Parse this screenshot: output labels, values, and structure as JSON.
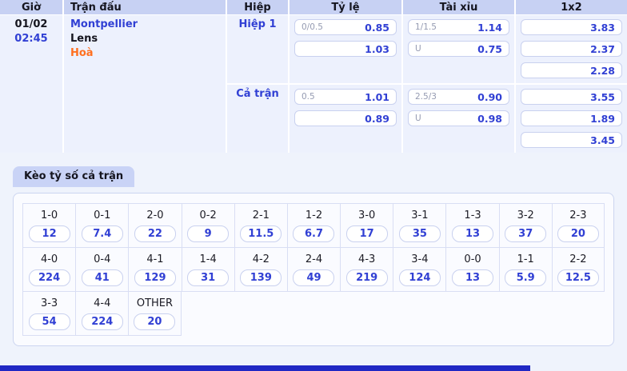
{
  "table": {
    "headers": {
      "time": "Giờ",
      "match": "Trận đấu",
      "period": "Hiệp",
      "handicap": "Tỷ lệ",
      "over_under": "Tài xỉu",
      "one_x_two": "1x2"
    },
    "match": {
      "date": "01/02",
      "time": "02:45",
      "home_team": "Montpellier",
      "away_team": "Lens",
      "draw_label": "Hoà",
      "periods": [
        {
          "label": "Hiệp 1",
          "handicap": [
            {
              "line": "0/0.5",
              "odds": "0.85"
            },
            {
              "line": "",
              "odds": "1.03"
            }
          ],
          "over_under": [
            {
              "line": "1/1.5",
              "odds": "1.14"
            },
            {
              "line": "U",
              "odds": "0.75"
            }
          ],
          "one_x_two": [
            "3.83",
            "2.37",
            "2.28"
          ]
        },
        {
          "label": "Cả trận",
          "handicap": [
            {
              "line": "0.5",
              "odds": "1.01"
            },
            {
              "line": "",
              "odds": "0.89"
            }
          ],
          "over_under": [
            {
              "line": "2.5/3",
              "odds": "0.90"
            },
            {
              "line": "U",
              "odds": "0.98"
            }
          ],
          "one_x_two": [
            "3.55",
            "1.89",
            "3.45"
          ]
        }
      ]
    }
  },
  "score_section": {
    "title": "Kèo tỷ số cả trận",
    "rows": [
      {
        "cells": [
          {
            "score": "1-0",
            "odds": "12"
          },
          {
            "score": "0-1",
            "odds": "7.4"
          },
          {
            "score": "2-0",
            "odds": "22"
          },
          {
            "score": "0-2",
            "odds": "9"
          },
          {
            "score": "2-1",
            "odds": "11.5"
          },
          {
            "score": "1-2",
            "odds": "6.7"
          },
          {
            "score": "3-0",
            "odds": "17"
          },
          {
            "score": "3-1",
            "odds": "35"
          },
          {
            "score": "1-3",
            "odds": "13"
          },
          {
            "score": "3-2",
            "odds": "37"
          },
          {
            "score": "2-3",
            "odds": "20"
          }
        ]
      },
      {
        "cells": [
          {
            "score": "4-0",
            "odds": "224"
          },
          {
            "score": "0-4",
            "odds": "41"
          },
          {
            "score": "4-1",
            "odds": "129"
          },
          {
            "score": "1-4",
            "odds": "31"
          },
          {
            "score": "4-2",
            "odds": "139"
          },
          {
            "score": "2-4",
            "odds": "49"
          },
          {
            "score": "4-3",
            "odds": "219"
          },
          {
            "score": "3-4",
            "odds": "124"
          },
          {
            "score": "0-0",
            "odds": "13"
          },
          {
            "score": "1-1",
            "odds": "5.9"
          },
          {
            "score": "2-2",
            "odds": "12.5"
          }
        ]
      },
      {
        "cells": [
          {
            "score": "3-3",
            "odds": "54"
          },
          {
            "score": "4-4",
            "odds": "224"
          },
          {
            "score": "OTHER",
            "odds": "20"
          }
        ]
      }
    ]
  },
  "colors": {
    "header_bg": "#c7d1f3",
    "row_bg": "#edf1fd",
    "accent_blue": "#3140d4",
    "draw_orange": "#ff6f1f",
    "scrollbar_thumb": "#2028c4"
  }
}
